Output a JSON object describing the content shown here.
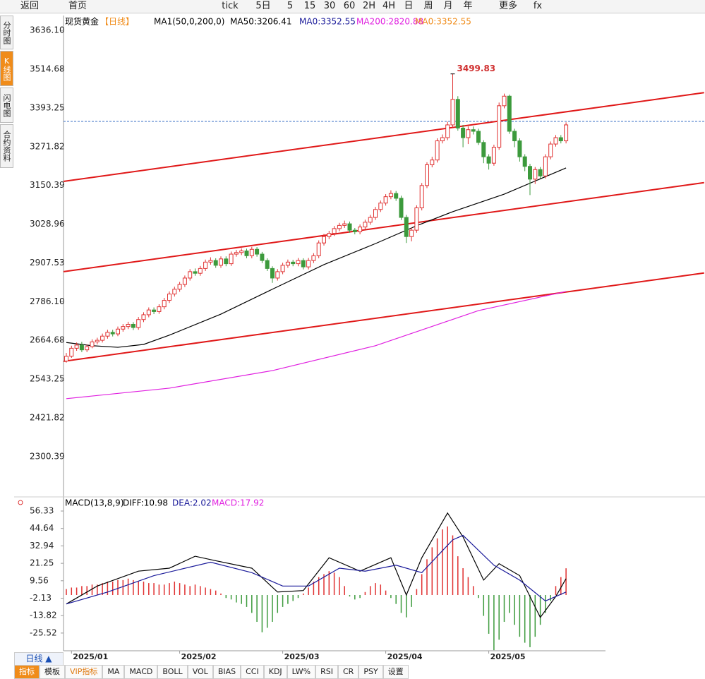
{
  "toolbar": {
    "items": [
      "返回",
      "首页",
      "tick",
      "5日",
      "5",
      "15",
      "30",
      "60",
      "2H",
      "4H",
      "日",
      "周",
      "月",
      "年",
      "更多",
      "fx"
    ]
  },
  "sidebar": {
    "tabs": [
      "分时图",
      "K线图",
      "闪电图",
      "合约资料"
    ]
  },
  "footer": {
    "period": "日线 ▲",
    "tabs": [
      "指标",
      "模板",
      "VIP指标",
      "MA",
      "MACD",
      "BOLL",
      "VOL",
      "BIAS",
      "CCI",
      "KDJ",
      "LW%",
      "RSI",
      "CR",
      "PSY",
      "设置"
    ]
  },
  "chart_data": [
    {
      "type": "candlestick",
      "title": "现货黄金",
      "subtitle": "【日线】",
      "indicator": "MA1(50,0,200,0)",
      "up_color": "#e03030",
      "down_color": "#3c9a3c",
      "ylim": [
        2183,
        3654
      ],
      "yticks": [
        {
          "value": 3636.1,
          "label": "3636.10"
        },
        {
          "value": 3514.68,
          "label": "3514.68"
        },
        {
          "value": 3393.25,
          "label": "3393.25"
        },
        {
          "value": 3271.82,
          "label": "3271.82"
        },
        {
          "value": 3150.39,
          "label": "3150.39"
        },
        {
          "value": 3028.96,
          "label": "3028.96"
        },
        {
          "value": 2907.53,
          "label": "2907.53"
        },
        {
          "value": 2786.1,
          "label": "2786.10"
        },
        {
          "value": 2664.68,
          "label": "2664.68"
        },
        {
          "value": 2543.25,
          "label": "2543.25"
        },
        {
          "value": 2421.82,
          "label": "2421.82"
        },
        {
          "value": 2300.39,
          "label": "2300.39"
        }
      ],
      "candles": [
        [
          2600,
          2625,
          2595,
          2615
        ],
        [
          2615,
          2648,
          2610,
          2640
        ],
        [
          2640,
          2658,
          2632,
          2650
        ],
        [
          2650,
          2660,
          2628,
          2635
        ],
        [
          2635,
          2652,
          2628,
          2645
        ],
        [
          2645,
          2668,
          2640,
          2660
        ],
        [
          2660,
          2673,
          2652,
          2665
        ],
        [
          2665,
          2686,
          2658,
          2678
        ],
        [
          2678,
          2698,
          2670,
          2690
        ],
        [
          2690,
          2698,
          2677,
          2685
        ],
        [
          2685,
          2708,
          2678,
          2700
        ],
        [
          2700,
          2716,
          2692,
          2708
        ],
        [
          2708,
          2723,
          2700,
          2715
        ],
        [
          2715,
          2722,
          2697,
          2705
        ],
        [
          2705,
          2738,
          2698,
          2730
        ],
        [
          2730,
          2753,
          2722,
          2745
        ],
        [
          2745,
          2768,
          2737,
          2760
        ],
        [
          2760,
          2768,
          2747,
          2755
        ],
        [
          2755,
          2778,
          2748,
          2770
        ],
        [
          2770,
          2798,
          2762,
          2790
        ],
        [
          2790,
          2818,
          2782,
          2810
        ],
        [
          2810,
          2833,
          2802,
          2825
        ],
        [
          2825,
          2848,
          2817,
          2840
        ],
        [
          2840,
          2868,
          2832,
          2860
        ],
        [
          2860,
          2888,
          2852,
          2880
        ],
        [
          2880,
          2890,
          2867,
          2875
        ],
        [
          2875,
          2898,
          2867,
          2890
        ],
        [
          2890,
          2918,
          2882,
          2910
        ],
        [
          2910,
          2925,
          2902,
          2915
        ],
        [
          2915,
          2922,
          2892,
          2900
        ],
        [
          2900,
          2928,
          2892,
          2920
        ],
        [
          2920,
          2928,
          2897,
          2905
        ],
        [
          2905,
          2943,
          2898,
          2935
        ],
        [
          2935,
          2948,
          2927,
          2940
        ],
        [
          2940,
          2953,
          2932,
          2945
        ],
        [
          2945,
          2952,
          2922,
          2930
        ],
        [
          2930,
          2958,
          2922,
          2950
        ],
        [
          2950,
          2957,
          2927,
          2935
        ],
        [
          2935,
          2942,
          2907,
          2915
        ],
        [
          2915,
          2922,
          2882,
          2890
        ],
        [
          2890,
          2897,
          2845,
          2860
        ],
        [
          2860,
          2888,
          2852,
          2880
        ],
        [
          2880,
          2908,
          2872,
          2900
        ],
        [
          2900,
          2918,
          2892,
          2910
        ],
        [
          2910,
          2917,
          2897,
          2905
        ],
        [
          2905,
          2923,
          2897,
          2915
        ],
        [
          2915,
          2922,
          2887,
          2895
        ],
        [
          2895,
          2923,
          2887,
          2915
        ],
        [
          2915,
          2938,
          2907,
          2930
        ],
        [
          2930,
          2978,
          2922,
          2970
        ],
        [
          2970,
          2998,
          2962,
          2990
        ],
        [
          2990,
          3008,
          2982,
          3000
        ],
        [
          3000,
          3023,
          2992,
          3015
        ],
        [
          3015,
          3033,
          3007,
          3025
        ],
        [
          3025,
          3040,
          3017,
          3030
        ],
        [
          3030,
          3037,
          3002,
          3010
        ],
        [
          3010,
          3017,
          2997,
          3005
        ],
        [
          3005,
          3028,
          2997,
          3020
        ],
        [
          3020,
          3043,
          3012,
          3035
        ],
        [
          3035,
          3058,
          3027,
          3050
        ],
        [
          3050,
          3083,
          3042,
          3075
        ],
        [
          3075,
          3103,
          3067,
          3095
        ],
        [
          3095,
          3123,
          3087,
          3115
        ],
        [
          3115,
          3135,
          3107,
          3125
        ],
        [
          3125,
          3133,
          3102,
          3110
        ],
        [
          3110,
          3118,
          3042,
          3050
        ],
        [
          3050,
          3058,
          2970,
          2990
        ],
        [
          2990,
          3018,
          2975,
          3010
        ],
        [
          3010,
          3088,
          3002,
          3080
        ],
        [
          3080,
          3158,
          3072,
          3150
        ],
        [
          3150,
          3223,
          3142,
          3215
        ],
        [
          3215,
          3240,
          3207,
          3230
        ],
        [
          3230,
          3298,
          3222,
          3290
        ],
        [
          3290,
          3310,
          3282,
          3300
        ],
        [
          3300,
          3350,
          3292,
          3340
        ],
        [
          3340,
          3499.83,
          3332,
          3420
        ],
        [
          3420,
          3430,
          3322,
          3330
        ],
        [
          3330,
          3340,
          3270,
          3300
        ],
        [
          3300,
          3335,
          3280,
          3325
        ],
        [
          3325,
          3335,
          3310,
          3320
        ],
        [
          3320,
          3328,
          3277,
          3285
        ],
        [
          3285,
          3292,
          3220,
          3240
        ],
        [
          3240,
          3248,
          3200,
          3220
        ],
        [
          3220,
          3278,
          3212,
          3270
        ],
        [
          3270,
          3410,
          3262,
          3400
        ],
        [
          3400,
          3438,
          3392,
          3430
        ],
        [
          3430,
          3435,
          3312,
          3320
        ],
        [
          3320,
          3328,
          3270,
          3290
        ],
        [
          3290,
          3298,
          3225,
          3240
        ],
        [
          3240,
          3248,
          3195,
          3210
        ],
        [
          3210,
          3218,
          3120,
          3170
        ],
        [
          3170,
          3208,
          3155,
          3200
        ],
        [
          3200,
          3208,
          3172,
          3180
        ],
        [
          3180,
          3248,
          3172,
          3240
        ],
        [
          3240,
          3288,
          3232,
          3280
        ],
        [
          3280,
          3308,
          3272,
          3300
        ],
        [
          3300,
          3308,
          3282,
          3290
        ],
        [
          3290,
          3348,
          3282,
          3340
        ]
      ],
      "series": [
        {
          "name": "MA50:3206.41",
          "color": "#000000",
          "x": [
            0,
            5,
            10,
            15,
            20,
            30,
            40,
            50,
            60,
            68,
            75,
            85,
            97
          ],
          "values": [
            2658,
            2648,
            2643,
            2652,
            2681,
            2747,
            2825,
            2902,
            2968,
            3024,
            3068,
            3123,
            3205
          ]
        },
        {
          "name": "MA0:3352.55",
          "color": "#1a1a9a"
        },
        {
          "name": "MA200:2820.88",
          "color": "#e020e0",
          "x": [
            0,
            20,
            40,
            60,
            80,
            97
          ],
          "values": [
            2482,
            2515,
            2570,
            2648,
            2758,
            2818
          ]
        },
        {
          "name": "MA0:3352.55",
          "color": "#f08c1a"
        }
      ],
      "price_line": {
        "value": 3351,
        "color": "#3a6fc4"
      },
      "trendlines": [
        {
          "color": "#e01818",
          "x": [
            -0.55,
            123.8
          ],
          "values": [
            3163,
            3441
          ]
        },
        {
          "color": "#e01818",
          "x": [
            -0.55,
            123.8
          ],
          "values": [
            2880,
            3159
          ]
        },
        {
          "color": "#e01818",
          "x": [
            -0.55,
            123.8
          ],
          "values": [
            2599,
            2876
          ]
        }
      ]
    },
    {
      "type": "macd",
      "title": "MACD(13,8,9)",
      "ylim": [
        -37.4,
        60.6
      ],
      "yticks": [
        56.33,
        44.64,
        32.94,
        21.25,
        9.56,
        -2.13,
        -13.82,
        -25.52
      ],
      "categories": [
        null,
        "2025/01",
        null,
        null,
        null,
        null,
        null,
        null,
        null,
        null,
        null,
        null,
        null,
        null,
        null,
        null,
        null,
        null,
        null,
        null,
        null,
        null,
        "2025/02",
        null,
        null,
        null,
        null,
        null,
        null,
        null,
        null,
        null,
        null,
        null,
        null,
        null,
        null,
        null,
        null,
        null,
        null,
        null,
        "2025/03",
        null,
        null,
        null,
        null,
        null,
        null,
        null,
        null,
        null,
        null,
        null,
        null,
        null,
        null,
        null,
        null,
        null,
        null,
        null,
        "2025/04",
        null,
        null,
        null,
        null,
        null,
        null,
        null,
        null,
        null,
        null,
        null,
        null,
        null,
        null,
        null,
        null,
        null,
        null,
        null,
        "2025/05",
        null,
        null,
        null,
        null,
        null,
        null,
        null,
        null,
        null,
        null,
        null,
        null,
        null,
        null,
        null
      ],
      "series": [
        {
          "name": "DIFF:10.98",
          "color": "#000000",
          "x": [
            0,
            6,
            14,
            20,
            25,
            29,
            36,
            41,
            46,
            51,
            57,
            63,
            66,
            69,
            74,
            77,
            81,
            84,
            88,
            92,
            95,
            97
          ],
          "values": [
            -6,
            6,
            16,
            18,
            26,
            23,
            18,
            2,
            3,
            25,
            16,
            25,
            0,
            25,
            55,
            39,
            10,
            21,
            13,
            -15,
            -1,
            11
          ]
        },
        {
          "name": "DEA:2.02",
          "color": "#1a1a9a",
          "x": [
            0,
            8,
            17,
            28,
            36,
            42,
            47,
            53,
            58,
            64,
            69,
            75,
            77,
            83,
            88,
            93,
            97
          ],
          "values": [
            -6,
            2,
            13,
            22,
            15,
            6,
            6,
            18,
            16,
            20,
            15,
            37,
            40,
            20,
            10,
            -4,
            2
          ]
        }
      ],
      "histogram": {
        "name": "MACD:17.92",
        "color": "#e020e0",
        "up_color": "#e03030",
        "down_color": "#3c9a3c",
        "values": [
          4,
          5,
          5,
          6,
          6,
          7,
          7,
          8,
          9,
          9,
          10,
          10,
          11,
          10,
          9,
          9,
          8,
          8,
          7,
          7,
          8,
          9,
          8,
          7,
          6,
          7,
          6,
          5,
          4,
          3,
          1,
          -2,
          -3,
          -5,
          -6,
          -8,
          -12,
          -18,
          -25,
          -22,
          -18,
          -12,
          -8,
          -6,
          -4,
          -2,
          1,
          5,
          9,
          12,
          14,
          16,
          15,
          12,
          6,
          -1,
          -3,
          -2,
          2,
          6,
          8,
          7,
          3,
          -2,
          -6,
          -12,
          -15,
          -8,
          4,
          14,
          24,
          32,
          38,
          44,
          46,
          40,
          26,
          18,
          12,
          6,
          -2,
          -14,
          -26,
          -37,
          -30,
          -18,
          -12,
          -20,
          -28,
          -32,
          -35,
          -28,
          -20,
          -12,
          -4,
          6,
          12,
          17.92
        ]
      }
    }
  ]
}
